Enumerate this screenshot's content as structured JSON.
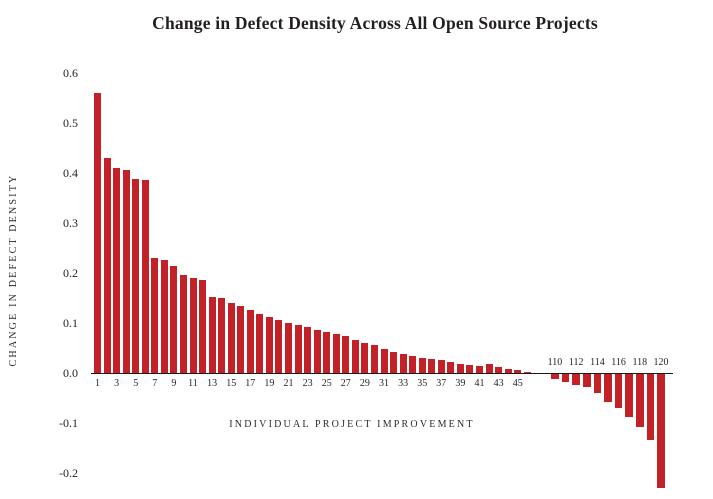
{
  "chart_data": {
    "type": "bar",
    "title": "Change in Defect Density Across All Open Source Projects",
    "xlabel": "INDIVIDUAL PROJECT IMPROVEMENT",
    "ylabel": "CHANGE IN DEFECT DENSITY",
    "ylim": [
      -0.25,
      0.62
    ],
    "grid": false,
    "legend": false,
    "bar_color": "#C32128",
    "axis_color": "#1a1a1a",
    "text_color": "#231f20",
    "yticks": [
      "0.6",
      "0.5",
      "0.4",
      "0.3",
      "0.2",
      "0.1",
      "0.0",
      "-0.1",
      "-0.2"
    ],
    "ytick_values": [
      0.6,
      0.5,
      0.4,
      0.3,
      0.2,
      0.1,
      0.0,
      -0.1,
      -0.2
    ],
    "groups": [
      {
        "name": "improved-projects",
        "x": [
          1,
          2,
          3,
          4,
          5,
          6,
          7,
          8,
          9,
          10,
          11,
          12,
          13,
          14,
          15,
          16,
          17,
          18,
          19,
          20,
          21,
          22,
          23,
          24,
          25,
          26,
          27,
          28,
          29,
          30,
          31,
          32,
          33,
          34,
          35,
          36,
          37,
          38,
          39,
          40,
          41,
          42,
          43,
          44,
          45,
          46
        ],
        "tick_labels": [
          "1",
          "3",
          "5",
          "7",
          "9",
          "11",
          "13",
          "15",
          "17",
          "19",
          "21",
          "23",
          "25",
          "27",
          "29",
          "31",
          "33",
          "35",
          "37",
          "39",
          "41",
          "43",
          "45"
        ],
        "tick_side": "below",
        "values": [
          0.56,
          0.43,
          0.41,
          0.405,
          0.387,
          0.385,
          0.23,
          0.225,
          0.213,
          0.196,
          0.19,
          0.185,
          0.152,
          0.15,
          0.14,
          0.133,
          0.125,
          0.118,
          0.112,
          0.106,
          0.1,
          0.096,
          0.091,
          0.086,
          0.081,
          0.077,
          0.073,
          0.065,
          0.06,
          0.055,
          0.047,
          0.042,
          0.037,
          0.033,
          0.03,
          0.027,
          0.025,
          0.022,
          0.018,
          0.015,
          0.014,
          0.018,
          0.011,
          0.008,
          0.005,
          0.002
        ]
      },
      {
        "name": "worsened-projects",
        "x": [
          110,
          111,
          112,
          113,
          114,
          115,
          116,
          117,
          118,
          119,
          120
        ],
        "tick_labels": [
          "110",
          "112",
          "114",
          "116",
          "118",
          "120"
        ],
        "tick_side": "above",
        "values": [
          -0.009,
          -0.015,
          -0.021,
          -0.026,
          -0.038,
          -0.055,
          -0.068,
          -0.086,
          -0.105,
          -0.132,
          -0.227
        ]
      }
    ]
  }
}
